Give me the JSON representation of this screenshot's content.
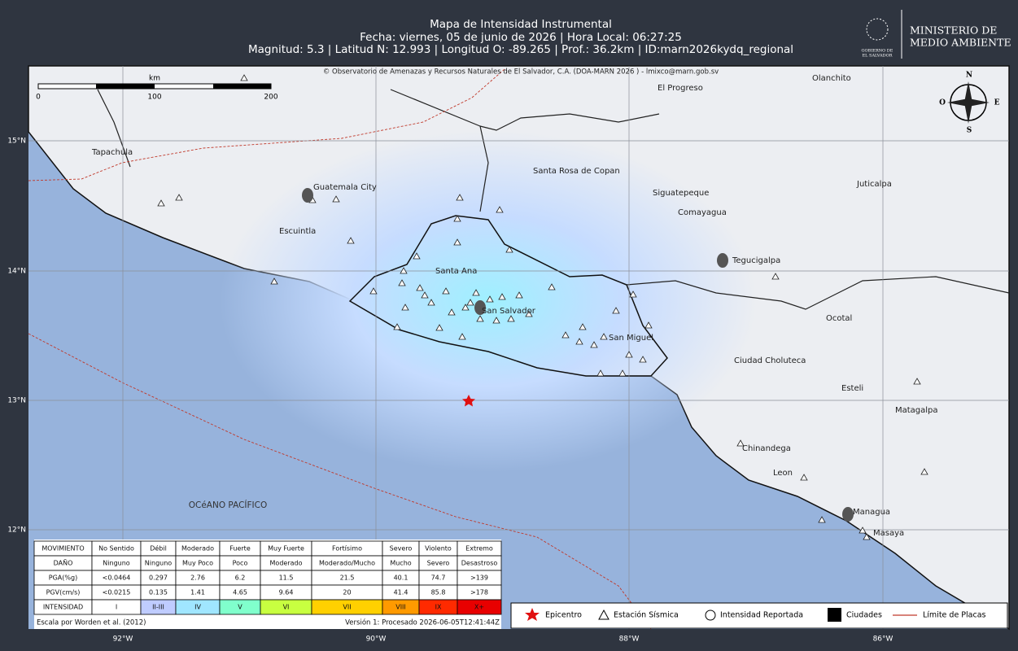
{
  "header": {
    "title": "Mapa de Intensidad Instrumental",
    "date_line": "Fecha: viernes, 05 de junio de 2026 | Hora Local: 06:27:25",
    "info_line": "Magnitud: 5.3 | Latitud N: 12.993 | Longitud O: -89.265 | Prof.: 36.2km | ID:marn2026kydq_regional"
  },
  "logo": {
    "gov": [
      "GOBIERNO DE",
      "EL SALVADOR"
    ],
    "ministry": [
      "MINISTERIO DE",
      "MEDIO AMBIENTE"
    ]
  },
  "map": {
    "copyright": "© Observatorio de Amenazas y Recursos Naturales de El Salvador, C.A. (DOA-MARN 2026 ) - lmixco@marn.gob.sv",
    "scale_unit": "km",
    "scale_labels": [
      "0",
      "100",
      "200"
    ],
    "compass": {
      "n": "N",
      "o": "O",
      "e": "E",
      "s": "S"
    },
    "lat_labels": [
      "15°N",
      "14°N",
      "13°N",
      "12°N"
    ],
    "lon_labels": [
      "92°W",
      "90°W",
      "88°W",
      "86°W"
    ],
    "places": [
      "Tapachula",
      "Guatemala City",
      "Escuintla",
      "Santa Ana",
      "San Salvador",
      "San Miguel",
      "El Progreso",
      "Olanchito",
      "Santa Rosa de Copan",
      "Siguatepeque",
      "Comayagua",
      "Juticalpa",
      "Tegucigalpa",
      "Ocotal",
      "Ciudad Choluteca",
      "Esteli",
      "Matagalpa",
      "Chinandega",
      "Leon",
      "Managua",
      "Masaya"
    ],
    "ocean": "OCéANO PACÍFICO"
  },
  "table": {
    "rows": [
      [
        "MOVIMIENTO",
        "No Sentido",
        "Débil",
        "Moderado",
        "Fuerte",
        "Muy Fuerte",
        "Fortísimo",
        "Severo",
        "Violento",
        "Extremo"
      ],
      [
        "DAÑO",
        "Ninguno",
        "Ninguno",
        "Muy Poco",
        "Poco",
        "Moderado",
        "Moderado/Mucho",
        "Mucho",
        "Severo",
        "Desastroso"
      ],
      [
        "PGA(%g)",
        "<0.0464",
        "0.297",
        "2.76",
        "6.2",
        "11.5",
        "21.5",
        "40.1",
        "74.7",
        ">139"
      ],
      [
        "PGV(cm/s)",
        "<0.0215",
        "0.135",
        "1.41",
        "4.65",
        "9.64",
        "20",
        "41.4",
        "85.8",
        ">178"
      ],
      [
        "INTENSIDAD",
        "I",
        "II-III",
        "IV",
        "V",
        "VI",
        "VII",
        "VIII",
        "IX",
        "X+"
      ]
    ]
  },
  "legend": [
    "Epicentro",
    "Estación Sísmica",
    "Intensidad Reportada",
    "Ciudades",
    "Límite de Placas"
  ],
  "footer": {
    "credit": "Escala por Worden et al. (2012)",
    "version": "Versión 1: Procesado 2026-06-05T12:41:44Z"
  }
}
